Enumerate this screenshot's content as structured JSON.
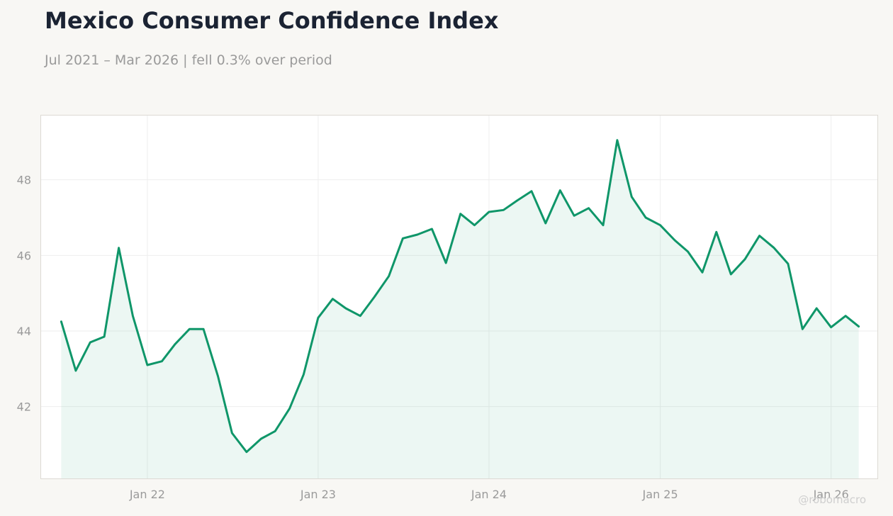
{
  "header": {
    "title": "Mexico Consumer Confidence Index",
    "subtitle": "Jul 2021 – Mar 2026 | fell 0.3% over period"
  },
  "watermark": "@robomacro",
  "colors": {
    "line": "#0f9669",
    "fill": "#0f9669",
    "background": "#f8f7f4",
    "plot_background": "#ffffff",
    "grid": "#eeeeee",
    "tick_text": "#9a9a9a"
  },
  "chart_data": {
    "type": "area",
    "title": "Mexico Consumer Confidence Index",
    "subtitle": "Jul 2021 – Mar 2026 | fell 0.3% over period",
    "xlabel": "",
    "ylabel": "",
    "ylim": [
      40.1,
      49.7
    ],
    "xlim": [
      "2021-05-19",
      "2026-04-10"
    ],
    "yticks": [
      42,
      44,
      46,
      48
    ],
    "xticks": [
      {
        "date": "2022-01-01",
        "label": "Jan 22"
      },
      {
        "date": "2023-01-01",
        "label": "Jan 23"
      },
      {
        "date": "2024-01-01",
        "label": "Jan 24"
      },
      {
        "date": "2025-01-01",
        "label": "Jan 25"
      },
      {
        "date": "2026-01-01",
        "label": "Jan 26"
      }
    ],
    "grid": true,
    "legend": "none",
    "series": [
      {
        "x": [
          "2021-07",
          "2021-08",
          "2021-09",
          "2021-10",
          "2021-11",
          "2021-12",
          "2022-01",
          "2022-02",
          "2022-03",
          "2022-04",
          "2022-05",
          "2022-06",
          "2022-07",
          "2022-08",
          "2022-09",
          "2022-10",
          "2022-11",
          "2022-12",
          "2023-01",
          "2023-02",
          "2023-03",
          "2023-04",
          "2023-05",
          "2023-06",
          "2023-07",
          "2023-08",
          "2023-09",
          "2023-10",
          "2023-11",
          "2023-12",
          "2024-01",
          "2024-02",
          "2024-03",
          "2024-04",
          "2024-05",
          "2024-06",
          "2024-07",
          "2024-08",
          "2024-09",
          "2024-10",
          "2024-11",
          "2024-12",
          "2025-01",
          "2025-02",
          "2025-03",
          "2025-04",
          "2025-05",
          "2025-06",
          "2025-07",
          "2025-08",
          "2025-09",
          "2025-10",
          "2025-11",
          "2025-12",
          "2026-01",
          "2026-02",
          "2026-03"
        ],
        "values": [
          44.25,
          42.95,
          43.7,
          43.85,
          46.2,
          44.4,
          43.1,
          43.2,
          43.65,
          44.05,
          44.05,
          42.8,
          41.3,
          40.8,
          41.15,
          41.35,
          41.95,
          42.85,
          44.35,
          44.85,
          44.6,
          44.4,
          44.9,
          45.45,
          46.45,
          46.55,
          46.7,
          45.8,
          47.1,
          46.8,
          47.15,
          47.2,
          47.45,
          47.7,
          46.85,
          47.72,
          47.05,
          47.25,
          46.8,
          49.05,
          47.55,
          47.0,
          46.8,
          46.4,
          46.1,
          45.55,
          46.62,
          45.5,
          45.9,
          46.52,
          46.2,
          45.78,
          44.05,
          44.6,
          44.1,
          44.4,
          44.12
        ]
      }
    ]
  }
}
